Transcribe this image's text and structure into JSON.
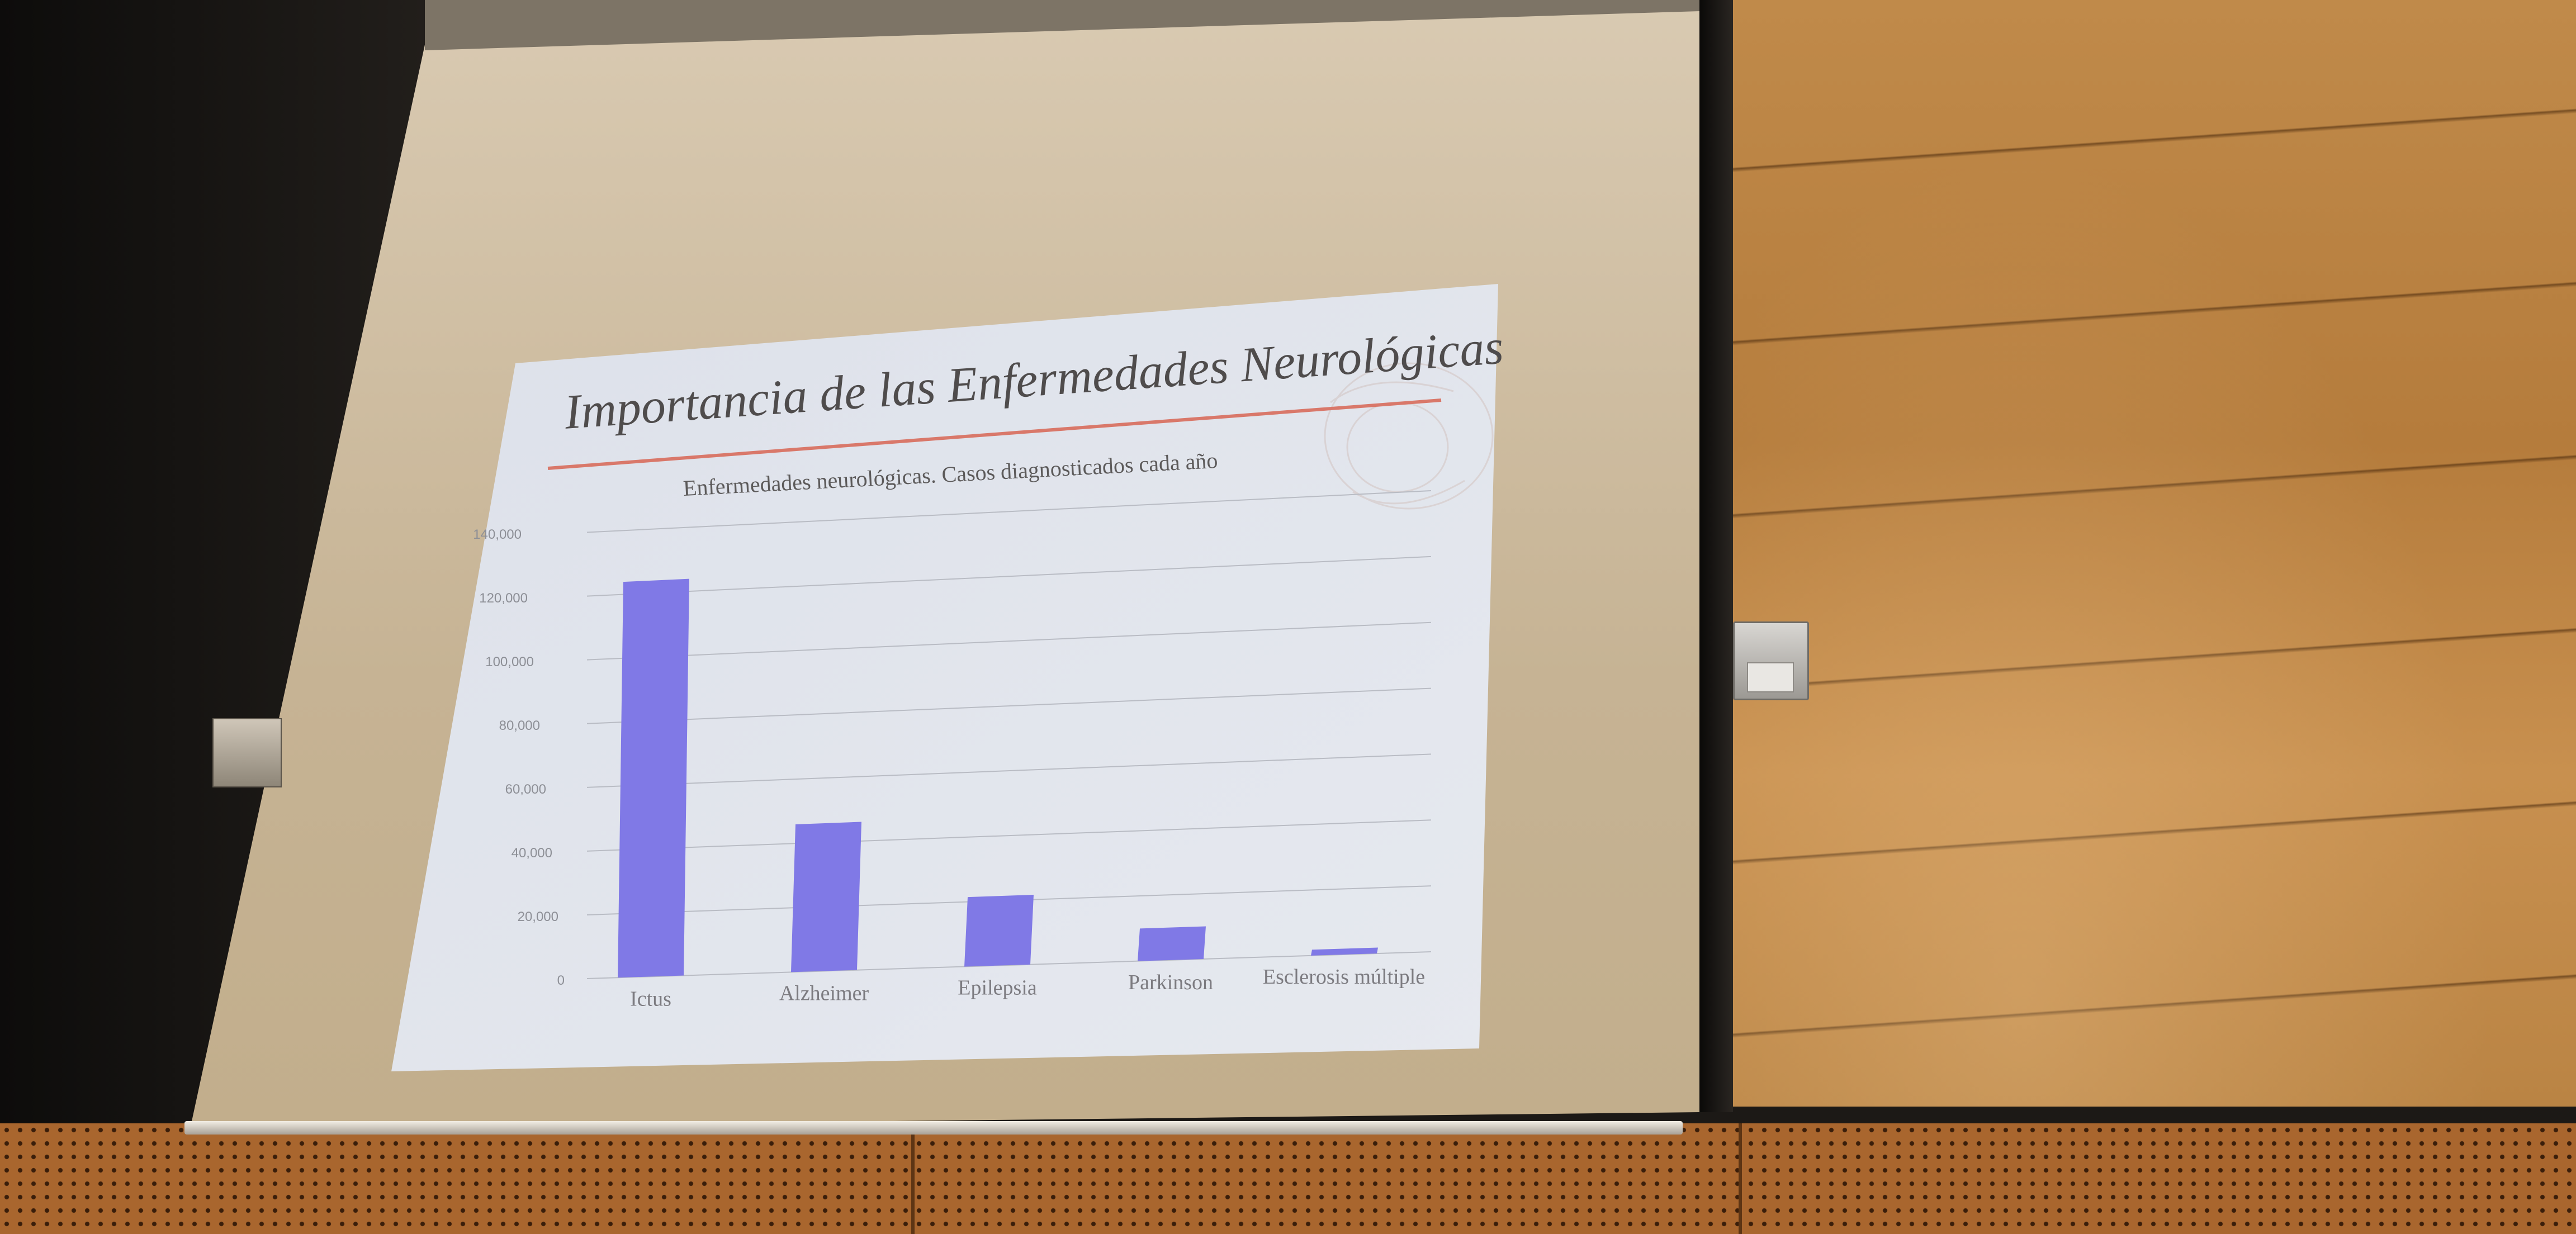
{
  "slide": {
    "title": "Importancia de las Enfermedades Neurológicas"
  },
  "chart_data": {
    "type": "bar",
    "title": "Enfermedades neurológicas. Casos diagnosticados cada año",
    "xlabel": "",
    "ylabel": "",
    "categories": [
      "Ictus",
      "Alzheimer",
      "Epilepsia",
      "Parkinson",
      "Esclerosis múltiple"
    ],
    "values": [
      124000,
      46000,
      21500,
      10000,
      1800
    ],
    "ylim": [
      0,
      140000
    ],
    "yticks": [
      "0",
      "20,000",
      "40,000",
      "60,000",
      "80,000",
      "100,000",
      "120,000",
      "140,000"
    ],
    "grid": true,
    "bar_color": "#8079e6"
  },
  "colors": {
    "slide_background": "#dfe3ec",
    "title_rule": "#d9786a",
    "screen": "#d8c9b0"
  }
}
